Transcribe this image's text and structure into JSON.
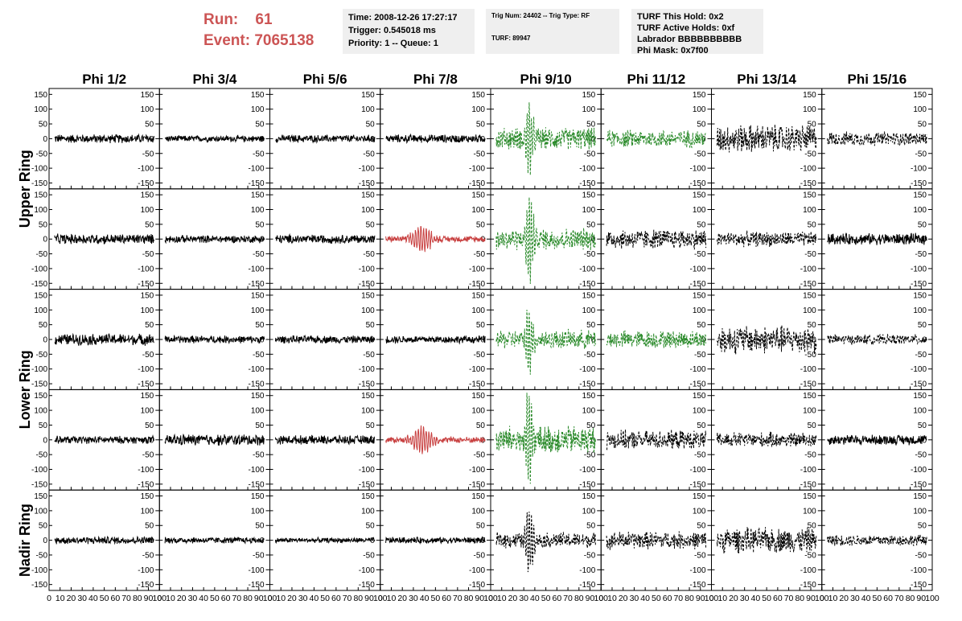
{
  "header": {
    "run_label": "Run:",
    "run_value": "61",
    "event_label": "Event:",
    "event_value": "7065138",
    "time": "Time: 2008-12-26 17:27:17",
    "trigger": "Trigger: 0.545018 ms",
    "priority": "Priority: 1 -- Queue: 1",
    "trig_num": "Trig Num: 24402 -- Trig Type: RF",
    "turf": "TURF: 89947",
    "turf_hold": "TURF This Hold: 0x2",
    "turf_active": "TURF Active Holds: 0xf",
    "labrador": "Labrador BBBBBBBBBB",
    "phi_mask": "Phi Mask: 0x7f00"
  },
  "colors": {
    "red": "#cc5555",
    "normal": "#000000",
    "triggered": "#2a8a2a",
    "highlight": "#c84040",
    "box": "#efefef"
  },
  "chart_data": {
    "type": "line",
    "title": "",
    "columns": [
      "Phi 1/2",
      "Phi 3/4",
      "Phi 5/6",
      "Phi 7/8",
      "Phi 9/10",
      "Phi 11/12",
      "Phi 13/14",
      "Phi 15/16"
    ],
    "rows": [
      "Upper Ring",
      "Lower Ring",
      "Nadir Ring"
    ],
    "xlim": [
      0,
      100
    ],
    "ylim": [
      -170,
      170
    ],
    "xticks": [
      0,
      10,
      20,
      30,
      40,
      50,
      60,
      70,
      80,
      90,
      100
    ],
    "yticks": [
      -150,
      -100,
      -50,
      0,
      50,
      100,
      150
    ],
    "series_rows": [
      "Upper Ring (1)",
      "Upper Ring (2)",
      "Lower Ring (1)",
      "Lower Ring (2)",
      "Nadir Ring"
    ],
    "panel_amplitude": [
      [
        14,
        10,
        12,
        13,
        35,
        28,
        45,
        22
      ],
      [
        16,
        12,
        14,
        20,
        35,
        32,
        24,
        18
      ],
      [
        18,
        12,
        12,
        12,
        30,
        28,
        45,
        16
      ],
      [
        12,
        18,
        14,
        20,
        45,
        30,
        24,
        16
      ],
      [
        12,
        10,
        8,
        10,
        25,
        28,
        40,
        18
      ]
    ],
    "panel_style": [
      [
        "normal",
        "normal",
        "normal",
        "normal",
        "triggered",
        "triggered",
        "dashed",
        "dashed"
      ],
      [
        "normal",
        "normal",
        "normal",
        "highlight",
        "triggered",
        "dashed",
        "dashed",
        "normal"
      ],
      [
        "normal",
        "normal",
        "normal",
        "normal",
        "triggered",
        "triggered",
        "dashed",
        "dashed"
      ],
      [
        "normal",
        "normal",
        "normal",
        "highlight",
        "triggered",
        "dashed",
        "dashed",
        "normal"
      ],
      [
        "normal",
        "normal",
        "normal",
        "normal",
        "dashed",
        "dashed",
        "dashed",
        "dashed"
      ]
    ],
    "pulse_peak": [
      [
        0,
        0,
        0,
        0,
        105,
        0,
        0,
        0
      ],
      [
        0,
        0,
        0,
        0,
        140,
        0,
        0,
        0
      ],
      [
        0,
        0,
        0,
        0,
        110,
        0,
        0,
        0
      ],
      [
        0,
        0,
        0,
        0,
        160,
        0,
        0,
        0
      ],
      [
        0,
        0,
        0,
        0,
        110,
        0,
        0,
        0
      ]
    ],
    "pulse_time": 35
  }
}
